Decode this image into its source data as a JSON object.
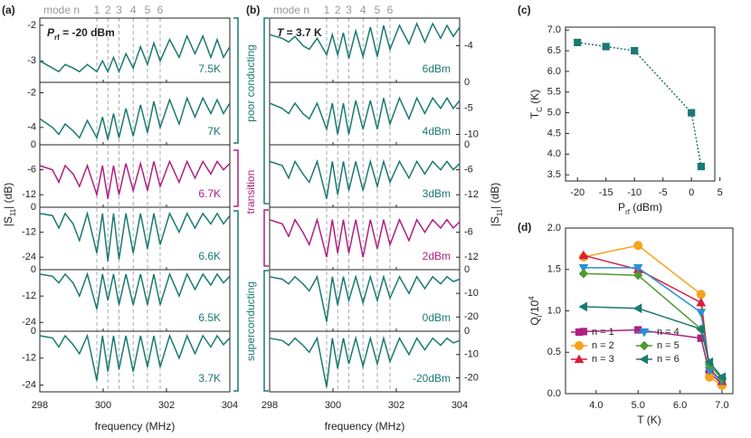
{
  "chart_data": [
    {
      "type": "spectra",
      "panel_label": "(a)",
      "annotation": {
        "main": "P",
        "sub": "rf",
        "tail": " = -20 dBm"
      },
      "mode_label": "mode n",
      "mode_numbers": [
        "1",
        "2",
        "3",
        "4",
        "5",
        "6"
      ],
      "mode_x": [
        299.8,
        300.15,
        300.5,
        300.95,
        301.4,
        301.8
      ],
      "regions": [
        "poor conducting",
        "transition",
        "superconducting"
      ],
      "xlabel": "frequency (MHz)",
      "ylabel": {
        "main": "|S",
        "sub": "11",
        "tail": "| (dB)"
      },
      "xlim": [
        298,
        304
      ],
      "xticks": [
        298,
        300,
        302,
        304
      ],
      "x": [
        298,
        298.4,
        298.6,
        298.8,
        299.05,
        299.25,
        299.5,
        299.8,
        299.98,
        300.15,
        300.33,
        300.5,
        300.72,
        300.95,
        301.18,
        301.4,
        301.6,
        301.8,
        302.1,
        302.4,
        302.65,
        302.9,
        303.15,
        303.4,
        303.6,
        303.8,
        304
      ],
      "subplots": [
        {
          "label": "7.5K",
          "color": "#1a7a72",
          "ylim": [
            -3.6,
            -1.8
          ],
          "yticks": [
            -2,
            -3
          ],
          "values": [
            -3.0,
            -3.2,
            -3.3,
            -3.1,
            -3.2,
            -3.3,
            -3.1,
            -3.3,
            -3.0,
            -3.3,
            -2.9,
            -3.3,
            -2.8,
            -3.2,
            -2.6,
            -3.1,
            -2.5,
            -3.0,
            -2.4,
            -2.9,
            -2.3,
            -2.8,
            -2.3,
            -2.9,
            -2.4,
            -2.9,
            -2.6
          ]
        },
        {
          "label": "7K",
          "color": "#1a7a72",
          "ylim": [
            -5,
            -1.4
          ],
          "yticks": [
            -2,
            -4
          ],
          "values": [
            -3.5,
            -4.0,
            -4.4,
            -3.8,
            -4.2,
            -4.6,
            -3.6,
            -4.6,
            -3.4,
            -4.7,
            -3.2,
            -4.6,
            -2.9,
            -4.5,
            -2.7,
            -4.3,
            -2.5,
            -4.0,
            -2.4,
            -3.8,
            -2.3,
            -3.4,
            -2.3,
            -3.2,
            -2.4,
            -3.2,
            -2.6
          ]
        },
        {
          "label": "6.7K",
          "color": "#b0207f",
          "ylim": [
            -15,
            0
          ],
          "yticks": [
            0,
            -6,
            -12
          ],
          "values": [
            -5,
            -6,
            -9,
            -5,
            -7,
            -10,
            -5,
            -12,
            -5,
            -13,
            -5,
            -12,
            -4.5,
            -11,
            -4.5,
            -11,
            -4,
            -10,
            -4,
            -9,
            -4,
            -8,
            -4,
            -7,
            -4,
            -6,
            -4.5
          ]
        },
        {
          "label": "6.6K",
          "color": "#1a7a72",
          "ylim": [
            -30,
            0
          ],
          "yticks": [
            0,
            -12,
            -24
          ],
          "values": [
            -3,
            -4,
            -10,
            -3,
            -8,
            -16,
            -3,
            -22,
            -3,
            -26,
            -3,
            -25,
            -3,
            -22,
            -3,
            -20,
            -3,
            -18,
            -3,
            -12,
            -3,
            -10,
            -3,
            -8,
            -3,
            -8,
            -4
          ]
        },
        {
          "label": "6.5K",
          "color": "#1a7a72",
          "ylim": [
            -28,
            0
          ],
          "yticks": [
            0,
            -12,
            -24
          ],
          "values": [
            -2,
            -3,
            -6,
            -2,
            -6,
            -12,
            -2,
            -18,
            -2,
            -14,
            -2,
            -16,
            -2,
            -16,
            -2,
            -16,
            -2,
            -16,
            -2,
            -12,
            -2,
            -9,
            -2,
            -7,
            -2,
            -6,
            -3
          ]
        },
        {
          "label": "3.7K",
          "color": "#1a7a72",
          "ylim": [
            -27,
            0
          ],
          "yticks": [
            0,
            -12,
            -24
          ],
          "values": [
            -2,
            -3,
            -7,
            -2,
            -6,
            -10,
            -2,
            -22,
            -2,
            -18,
            -2,
            -17,
            -2,
            -18,
            -2,
            -16,
            -2,
            -16,
            -2,
            -12,
            -2,
            -10,
            -2,
            -7,
            -2,
            -6,
            -3
          ]
        }
      ]
    },
    {
      "type": "spectra",
      "panel_label": "(b)",
      "annotation": {
        "main": "T",
        "tail": " = 3.7 K"
      },
      "mode_label": "mode n",
      "mode_numbers": [
        "1",
        "2",
        "3",
        "4",
        "5",
        "6"
      ],
      "mode_x": [
        299.8,
        300.15,
        300.5,
        300.95,
        301.4,
        301.8
      ],
      "xlabel": "frequency (MHz)",
      "ylabel": {
        "main": "|S",
        "sub": "11",
        "tail": "| (dB)"
      },
      "xlim": [
        298,
        304
      ],
      "xticks": [
        298,
        300,
        302,
        304
      ],
      "x": [
        298,
        298.4,
        298.6,
        298.8,
        299.05,
        299.25,
        299.5,
        299.8,
        299.98,
        300.15,
        300.33,
        300.5,
        300.72,
        300.95,
        301.18,
        301.4,
        301.6,
        301.8,
        302.1,
        302.4,
        302.65,
        302.9,
        303.15,
        303.4,
        303.6,
        303.8,
        304
      ],
      "subplots": [
        {
          "label": "6dBm",
          "color": "#1a7a72",
          "ylim": [
            -6,
            -2.5
          ],
          "yticks": [
            -4
          ],
          "values": [
            -3.4,
            -3.6,
            -3.8,
            -3.5,
            -4.0,
            -4.2,
            -3.6,
            -4.5,
            -3.4,
            -4.5,
            -3.3,
            -4.7,
            -3.2,
            -4.6,
            -3.0,
            -4.6,
            -2.9,
            -4.2,
            -2.9,
            -3.9,
            -2.8,
            -3.8,
            -2.8,
            -3.6,
            -2.9,
            -3.5,
            -3.0
          ]
        },
        {
          "label": "4dBm",
          "color": "#1a7a72",
          "ylim": [
            -12,
            0
          ],
          "yticks": [
            0,
            -5,
            -10
          ],
          "values": [
            -4,
            -5,
            -6,
            -4,
            -6,
            -7,
            -4,
            -9,
            -4,
            -10,
            -4,
            -10,
            -3.5,
            -9,
            -3.5,
            -9,
            -3,
            -8,
            -3,
            -7,
            -3,
            -6,
            -3,
            -5,
            -3,
            -5,
            -3.5
          ]
        },
        {
          "label": "3dBm",
          "color": "#1a7a72",
          "ylim": [
            -15,
            0
          ],
          "yticks": [
            0,
            -6,
            -12
          ],
          "values": [
            -4,
            -5,
            -8,
            -4,
            -7,
            -9,
            -4,
            -13,
            -4,
            -12,
            -4,
            -11,
            -4,
            -11,
            -4,
            -10,
            -4,
            -9,
            -4,
            -8,
            -4,
            -7,
            -4,
            -6,
            -4,
            -6,
            -4.5
          ]
        },
        {
          "label": "2dBm",
          "color": "#b0207f",
          "ylim": [
            -15,
            0
          ],
          "yticks": [
            -6,
            -12
          ],
          "values": [
            -3,
            -4,
            -7,
            -3,
            -6,
            -9,
            -3,
            -12,
            -3,
            -11,
            -3,
            -11,
            -3,
            -12,
            -3,
            -10,
            -3,
            -9,
            -3,
            -8,
            -3,
            -6,
            -3,
            -5,
            -3,
            -5,
            -3.5
          ]
        },
        {
          "label": "0dBm",
          "color": "#1a7a72",
          "ylim": [
            -26,
            0
          ],
          "yticks": [
            0,
            -10,
            -20
          ],
          "values": [
            -3,
            -4,
            -6,
            -3,
            -6,
            -9,
            -3,
            -22,
            -3,
            -15,
            -3,
            -13,
            -3,
            -14,
            -3,
            -13,
            -3,
            -12,
            -3,
            -10,
            -3,
            -8,
            -3,
            -6,
            -3,
            -5,
            -4
          ]
        },
        {
          "label": "-20dBm",
          "color": "#1a7a72",
          "ylim": [
            -26,
            0
          ],
          "yticks": [
            0,
            -10,
            -20
          ],
          "values": [
            -3,
            -4,
            -6,
            -3,
            -6,
            -9,
            -3,
            -24,
            -3,
            -16,
            -3,
            -14,
            -3,
            -15,
            -3,
            -14,
            -3,
            -13,
            -3,
            -10,
            -3,
            -8,
            -3,
            -6,
            -3,
            -5,
            -4
          ]
        }
      ]
    },
    {
      "type": "line",
      "panel_label": "(c)",
      "xlabel": {
        "main": "P",
        "sub": "rf",
        "tail": " (dBm)"
      },
      "ylabel": {
        "main": "T",
        "sub": "C",
        "tail": " (K)"
      },
      "xlim": [
        -22.1,
        4.1
      ],
      "xticks": [
        -20,
        -15,
        -10,
        -5,
        0,
        5
      ],
      "ylim": [
        3.35,
        7.07
      ],
      "yticks": [
        3.5,
        {
          "value": 4,
          "label": "4.0"
        },
        4.5,
        {
          "value": 5,
          "label": "5.0"
        },
        5.5,
        {
          "value": 6,
          "label": "6.0"
        },
        6.5,
        {
          "value": 7,
          "label": "7.0"
        }
      ],
      "series": [
        {
          "color": "#1a7a72",
          "marker": "square",
          "x": [
            -20,
            -15,
            -10,
            0,
            1.7
          ],
          "values": [
            6.7,
            6.6,
            6.5,
            5.0,
            3.7
          ]
        }
      ]
    },
    {
      "type": "line",
      "panel_label": "(d)",
      "xlabel": "T (K)",
      "ylabel": {
        "main": "Q",
        "sub": "i",
        "tail": "/10",
        "sup": "4"
      },
      "xlim": [
        3.27,
        7.26
      ],
      "xticks": [
        {
          "value": 4,
          "label": "4.0"
        },
        {
          "value": 5,
          "label": "5.0"
        },
        {
          "value": 6,
          "label": "6.0"
        },
        {
          "value": 7,
          "label": "7.0"
        }
      ],
      "ylim": [
        0,
        2
      ],
      "yticks": [
        {
          "value": 0,
          "label": "0.0"
        },
        0.5,
        {
          "value": 1,
          "label": "1.0"
        },
        1.5,
        {
          "value": 2,
          "label": "2.0"
        }
      ],
      "x": [
        3.7,
        5.0,
        6.5,
        6.7,
        7.0
      ],
      "series": [
        {
          "name": "n = 1",
          "color": "#b0207f",
          "marker": "square",
          "values": [
            0.75,
            0.77,
            0.67,
            0.25,
            0.12
          ]
        },
        {
          "name": "n = 2",
          "color": "#f5a31a",
          "marker": "circle",
          "values": [
            1.65,
            1.79,
            1.2,
            0.2,
            0.1
          ]
        },
        {
          "name": "n = 3",
          "color": "#d91e3d",
          "marker": "triangle-up",
          "values": [
            1.67,
            1.5,
            1.1,
            0.3,
            0.15
          ]
        },
        {
          "name": "n = 4",
          "color": "#2b8fd6",
          "marker": "triangle-down",
          "values": [
            1.52,
            1.52,
            0.98,
            0.28,
            0.15
          ]
        },
        {
          "name": "n = 5",
          "color": "#4e9a2e",
          "marker": "diamond",
          "values": [
            1.45,
            1.43,
            0.78,
            0.35,
            0.18
          ]
        },
        {
          "name": "n = 6",
          "color": "#1a7a72",
          "marker": "triangle-left",
          "values": [
            1.05,
            1.03,
            0.78,
            0.38,
            0.2
          ]
        }
      ]
    }
  ]
}
